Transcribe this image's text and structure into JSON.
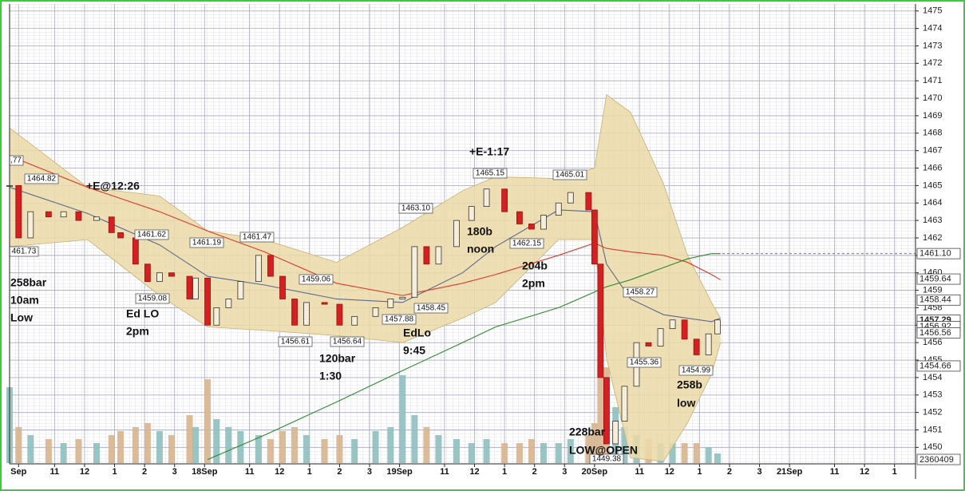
{
  "chart_data": {
    "type": "candlestick",
    "xlim": [
      0,
      30.2
    ],
    "xticks": [
      {
        "value": 0.3,
        "label": "Sep"
      },
      {
        "value": 1.5,
        "label": "11"
      },
      {
        "value": 2.5,
        "label": "12"
      },
      {
        "value": 3.5,
        "label": "1"
      },
      {
        "value": 4.5,
        "label": "2"
      },
      {
        "value": 5.5,
        "label": "3"
      },
      {
        "value": 6.5,
        "label": "18Sep"
      },
      {
        "value": 8,
        "label": "11"
      },
      {
        "value": 9,
        "label": "12"
      },
      {
        "value": 10,
        "label": "1"
      },
      {
        "value": 11,
        "label": "2"
      },
      {
        "value": 12,
        "label": "3"
      },
      {
        "value": 13,
        "label": "19Sep"
      },
      {
        "value": 14.5,
        "label": "11"
      },
      {
        "value": 15.5,
        "label": "12"
      },
      {
        "value": 16.5,
        "label": "1"
      },
      {
        "value": 17.5,
        "label": "2"
      },
      {
        "value": 18.5,
        "label": "3"
      },
      {
        "value": 19.5,
        "label": "20Sep"
      },
      {
        "value": 21,
        "label": "11"
      },
      {
        "value": 22,
        "label": "12"
      },
      {
        "value": 23,
        "label": "1"
      },
      {
        "value": 24,
        "label": "2"
      },
      {
        "value": 25,
        "label": "3"
      },
      {
        "value": 26,
        "label": "21Sep"
      },
      {
        "value": 27.5,
        "label": "11"
      },
      {
        "value": 28.5,
        "label": "12"
      },
      {
        "value": 29.5,
        "label": "1"
      }
    ],
    "ylim": [
      1449.1,
      1475.4
    ],
    "yticks": [
      1450,
      1451,
      1452,
      1453,
      1454,
      1455,
      1456,
      1457,
      1458,
      1459,
      1460,
      1461,
      1462,
      1463,
      1464,
      1465,
      1466,
      1467,
      1468,
      1469,
      1470,
      1471,
      1472,
      1473,
      1474,
      1475
    ],
    "grid": true,
    "x": [
      0,
      0.3,
      0.7,
      1.3,
      1.8,
      2.3,
      2.9,
      3.4,
      3.7,
      4.2,
      4.6,
      5,
      5.4,
      6,
      6.2,
      6.6,
      6.9,
      7.3,
      7.7,
      8.3,
      8.7,
      9.1,
      9.5,
      9.9,
      10.5,
      11,
      11.5,
      12.2,
      12.7,
      13.1,
      13.5,
      13.9,
      14.3,
      14.9,
      15.4,
      15.9,
      16.5,
      17,
      17.4,
      17.8,
      18.3,
      18.7,
      19.3,
      19.5,
      19.7,
      19.9,
      20.2,
      20.5,
      20.9,
      21.3,
      21.7,
      22.1,
      22.5,
      22.9,
      23.3,
      23.6
    ],
    "close": [
      1465,
      1462,
      1463.5,
      1463.2,
      1463.5,
      1463,
      1463.2,
      1462.3,
      1462,
      1460.5,
      1459.5,
      1460,
      1459.8,
      1458.5,
      1459.7,
      1457,
      1458,
      1458.5,
      1459.5,
      1461,
      1459.8,
      1458.5,
      1457,
      1458.3,
      1458.2,
      1457,
      1457.5,
      1458,
      1458.5,
      1458.6,
      1461.5,
      1460.5,
      1461.5,
      1463,
      1463.8,
      1464.8,
      1463.5,
      1462.8,
      1462.5,
      1463.3,
      1464,
      1464.6,
      1463.6,
      1460.5,
      1454,
      1450.2,
      1451.5,
      1453.5,
      1456,
      1455.8,
      1456.8,
      1457.3,
      1456.2,
      1455.3,
      1456.5,
      1457.3
    ],
    "up_color": "#f6eed8",
    "down_color": "#d42020",
    "volume": [
      19000000,
      9000000,
      7000000,
      6000000,
      5000000,
      6000000,
      5000000,
      7000000,
      8000000,
      9000000,
      10000000,
      8000000,
      7000000,
      12000000,
      9000000,
      21000000,
      11000000,
      9000000,
      8000000,
      7000000,
      6000000,
      8000000,
      9000000,
      7000000,
      6000000,
      7000000,
      6000000,
      8000000,
      9000000,
      22000000,
      12000000,
      9000000,
      7000000,
      6000000,
      5000000,
      6000000,
      5000000,
      5000000,
      6000000,
      5000000,
      5000000,
      6000000,
      7000000,
      10000000,
      24000000,
      24000000,
      14000000,
      9000000,
      7000000,
      6000000,
      5000000,
      5000000,
      5000000,
      5000000,
      4000000,
      2400000
    ],
    "volume_lim": [
      0,
      30000000
    ],
    "volume_up_color": "#8fbfbf",
    "volume_down_color": "#d8b48e",
    "bands": {
      "x": [
        0,
        2.6,
        5,
        6.6,
        8.5,
        10.9,
        13.1,
        15.1,
        16.2,
        18.3,
        19.5,
        19.9,
        20.7,
        21.8,
        22.6,
        23.4,
        23.7
      ],
      "upper": [
        1468.3,
        1464.9,
        1464.4,
        1462.4,
        1461.9,
        1460.6,
        1462.6,
        1464.7,
        1465.5,
        1465.4,
        1466,
        1470.2,
        1469.2,
        1465.1,
        1461,
        1458.3,
        1457.4
      ],
      "lower": [
        1461.5,
        1461.9,
        1458.7,
        1456.9,
        1456.7,
        1456.4,
        1456,
        1457.4,
        1458.3,
        1461.9,
        1461.9,
        1455.1,
        1449.4,
        1449.2,
        1451.4,
        1454.2,
        1456
      ],
      "color": "#ecd9a8",
      "edge_color": "#c8b070"
    },
    "lines": [
      {
        "color": "#5a6a8c",
        "values": [
          1464.9,
          1463.4,
          1461.6,
          1459.8,
          1459.3,
          1458.5,
          1458.3,
          1460,
          1461.5,
          1463.6,
          1463.5,
          1460.5,
          1458.5,
          1457.6,
          1457.4,
          1457.2,
          1457.4
        ]
      },
      {
        "color": "#d83a2a",
        "values": [
          1466.7,
          1464.9,
          1463.5,
          1462.4,
          1461.2,
          1459.4,
          1458.7,
          1459.4,
          1459.9,
          1461,
          1461.7,
          1461.4,
          1461.2,
          1461,
          1460.6,
          1459.9,
          1459.6
        ]
      },
      {
        "color": "#2a8a2a",
        "values": [
          null,
          null,
          null,
          1449.3,
          1450.7,
          1452.6,
          1454.4,
          1456,
          1456.9,
          1458,
          1458.9,
          1459.2,
          1459.6,
          1460.3,
          1460.8,
          1461.1,
          1461.1
        ]
      }
    ],
    "reference_line": {
      "value": 1461.1,
      "color": "#5a7ab0"
    },
    "axis_markers": [
      {
        "value": 1461.1,
        "label": "1461.10"
      },
      {
        "value": 1459.64,
        "label": "1459.64"
      },
      {
        "value": 1458.44,
        "label": "1458.44"
      },
      {
        "value": 1457.29,
        "label": "1457.29"
      },
      {
        "value": 1456.92,
        "label": "1456.92"
      },
      {
        "value": 1456.56,
        "label": "1456.56"
      },
      {
        "value": 1454.66,
        "label": "1454.66"
      }
    ],
    "volume_marker": "2360409",
    "callouts": [
      "1464.82",
      "461.73",
      ",77",
      "1461.62",
      "1459.08",
      "1461.19",
      "1461.47",
      "1459.06",
      "1456.61",
      "1456.64",
      "1463.10",
      "1458.45",
      "1457.88",
      "1465.15",
      "1462.15",
      "1465.01",
      "1458.27",
      "1455.36",
      "1454.99",
      "1449.38"
    ],
    "annotations": [
      [
        "+E@12:26"
      ],
      [
        "258bar",
        "10am",
        "Low"
      ],
      [
        "Ed LO",
        "2pm"
      ],
      [
        "120bar",
        "1:30"
      ],
      [
        "EdLo",
        "9:45"
      ],
      [
        "+E-1:17"
      ],
      [
        "180b",
        "noon"
      ],
      [
        "204b",
        "2pm"
      ],
      [
        "228bar",
        "LOW@OPEN"
      ],
      [
        "258b",
        "low"
      ]
    ]
  }
}
